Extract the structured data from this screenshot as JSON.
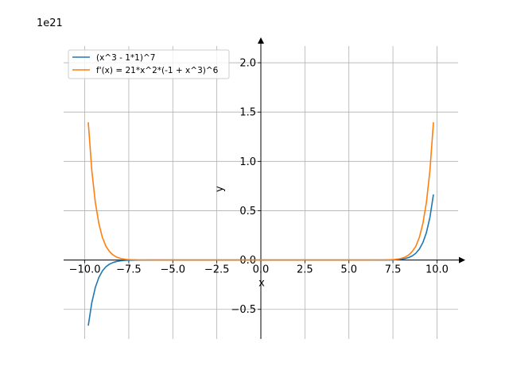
{
  "chart_data": {
    "type": "line",
    "title": "",
    "xlabel": "x",
    "ylabel": "y",
    "y_offset_label": "1e21",
    "xlim": [
      -11.2,
      11.2
    ],
    "ylim": [
      -0.8,
      2.25
    ],
    "y_scale": 1e+21,
    "grid": true,
    "legend_position": "top-left",
    "x_ticks": [
      -10.0,
      -7.5,
      -5.0,
      -2.5,
      0.0,
      2.5,
      5.0,
      7.5,
      10.0
    ],
    "x_tick_labels": [
      "−10.0",
      "−7.5",
      "−5.0",
      "−2.5",
      "0.0",
      "2.5",
      "5.0",
      "7.5",
      "10.0"
    ],
    "y_ticks": [
      -0.5,
      0.0,
      0.5,
      1.0,
      1.5,
      2.0
    ],
    "y_tick_labels": [
      "−0.5",
      "0.0",
      "0.5",
      "1.0",
      "1.5",
      "2.0"
    ],
    "x_range": [
      -9.8,
      9.8
    ],
    "series": [
      {
        "name": "(x^3 - 1*1)^7",
        "color": "#1f77b4",
        "x": [
          -9.8,
          -9.6,
          -9.4,
          -9.2,
          -9.0,
          -8.8,
          -8.6,
          -8.4,
          -8.2,
          -8.0,
          -7.8,
          -7.6,
          -7.4,
          -7.0,
          -6.0,
          -4.0,
          -2.0,
          0.0,
          2.0,
          4.0,
          6.0,
          7.0,
          7.4,
          7.6,
          7.8,
          8.0,
          8.2,
          8.4,
          8.6,
          8.8,
          9.0,
          9.2,
          9.4,
          9.6,
          9.8
        ],
        "y": [
          -0.665,
          -0.432,
          -0.278,
          -0.177,
          -0.111,
          -0.069,
          -0.042,
          -0.026,
          -0.015,
          -0.0089,
          -0.0051,
          -0.0029,
          -0.0016,
          -0.00049,
          -1.8e-05,
          0.0,
          0.0,
          0.0,
          0.0,
          0.0,
          1.8e-05,
          0.00049,
          0.0016,
          0.0029,
          0.0051,
          0.0089,
          0.015,
          0.026,
          0.042,
          0.069,
          0.111,
          0.177,
          0.278,
          0.432,
          0.665
        ]
      },
      {
        "name": "f'(x) = 21*x^2*(-1 + x^3)^6",
        "color": "#ff7f0e",
        "x": [
          -9.8,
          -9.6,
          -9.4,
          -9.2,
          -9.0,
          -8.8,
          -8.6,
          -8.4,
          -8.2,
          -8.0,
          -7.8,
          -7.6,
          -7.4,
          -7.0,
          -6.0,
          -4.0,
          -2.0,
          0.0,
          2.0,
          4.0,
          6.0,
          7.0,
          7.4,
          7.6,
          7.8,
          8.0,
          8.2,
          8.4,
          8.6,
          8.8,
          9.0,
          9.2,
          9.4,
          9.6,
          9.8
        ],
        "y": [
          1.396,
          0.907,
          0.583,
          0.37,
          0.23,
          0.14,
          0.087,
          0.052,
          0.03,
          0.0175,
          0.01,
          0.0055,
          0.003,
          0.0009,
          3.1e-05,
          0.0,
          0.0,
          0.0,
          0.0,
          0.0,
          3.1e-05,
          0.0009,
          0.003,
          0.0055,
          0.01,
          0.0175,
          0.03,
          0.052,
          0.087,
          0.14,
          0.23,
          0.37,
          0.583,
          0.907,
          1.396
        ]
      }
    ]
  }
}
